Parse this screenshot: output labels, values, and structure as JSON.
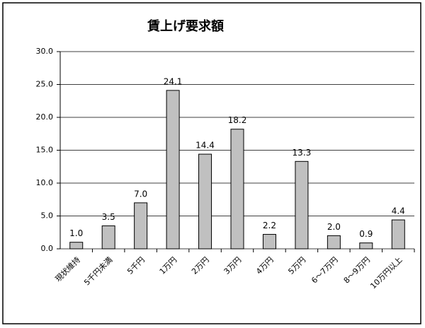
{
  "chart_data": {
    "type": "bar",
    "title": "賃上げ要求額",
    "categories": [
      "現状維持",
      "5千円未満",
      "5千円",
      "1万円",
      "2万円",
      "3万円",
      "4万円",
      "5万円",
      "6～7万円",
      "8～9万円",
      "10万円以上"
    ],
    "values": [
      1.0,
      3.5,
      7.0,
      24.1,
      14.4,
      18.2,
      2.2,
      13.3,
      2.0,
      0.9,
      4.4
    ],
    "value_labels": [
      "1.0",
      "3.5",
      "7.0",
      "24.1",
      "14.4",
      "18.2",
      "2.2",
      "13.3",
      "2.0",
      "0.9",
      "4.4"
    ],
    "color": "#c0c0c0",
    "ylim": [
      0,
      30
    ],
    "yticks": [
      {
        "value": 0,
        "label": "0.0"
      },
      {
        "value": 5,
        "label": "5.0"
      },
      {
        "value": 10,
        "label": "10.0"
      },
      {
        "value": 15,
        "label": "15.0"
      },
      {
        "value": 20,
        "label": "20.0"
      },
      {
        "value": 25,
        "label": "25.0"
      },
      {
        "value": 30,
        "label": "30.0"
      }
    ],
    "grid": true
  }
}
